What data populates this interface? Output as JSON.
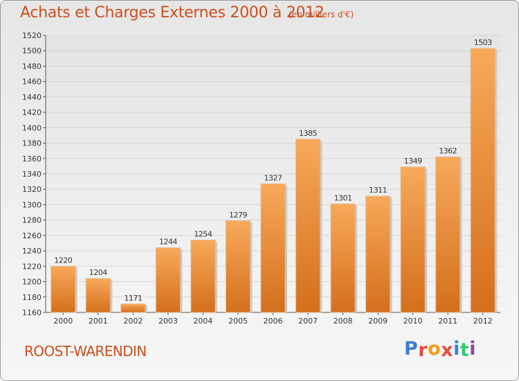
{
  "title": "Achats et Charges Externes 2000 à 2012",
  "subtitle": "(en milliers d'€)",
  "commune": "ROOST-WARENDIN",
  "logo": {
    "text": "Proxiti",
    "letter_colors": [
      "#3b7fd0",
      "#e74c3c",
      "#f39c12",
      "#e74c3c",
      "#2e86de",
      "#2ecc71",
      "#8e44ad"
    ]
  },
  "colors": {
    "bar_top": "#f7a95a",
    "bar_bottom": "#d46f1c",
    "title": "#cc4e1c",
    "grid": "#d6d6d6"
  },
  "chart_data": {
    "type": "bar",
    "title": "Achats et Charges Externes 2000 à 2012",
    "subtitle": "(en milliers d'€)",
    "categories": [
      "2000",
      "2001",
      "2002",
      "2003",
      "2004",
      "2005",
      "2006",
      "2007",
      "2008",
      "2009",
      "2010",
      "2011",
      "2012"
    ],
    "values": [
      1220,
      1204,
      1171,
      1244,
      1254,
      1279,
      1327,
      1385,
      1301,
      1311,
      1349,
      1362,
      1503
    ],
    "ylim": [
      1160,
      1520
    ],
    "yticks": [
      1160,
      1180,
      1200,
      1220,
      1240,
      1260,
      1280,
      1300,
      1320,
      1340,
      1360,
      1380,
      1400,
      1420,
      1440,
      1460,
      1480,
      1500,
      1520
    ],
    "grid": true,
    "xlabel": "",
    "ylabel": ""
  }
}
